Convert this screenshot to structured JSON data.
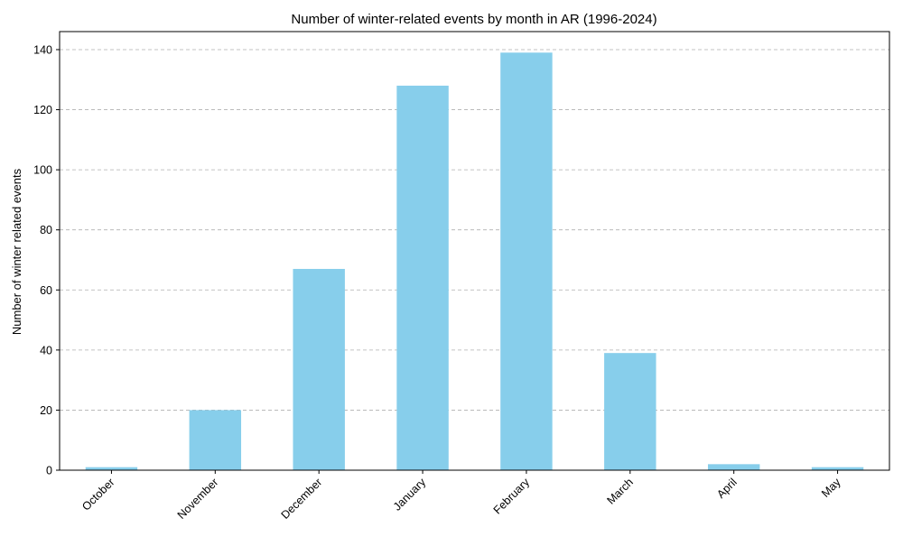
{
  "chart_data": {
    "type": "bar",
    "title": "Number of winter-related events by month in AR (1996-2024)",
    "xlabel": "",
    "ylabel": "Number of winter related events",
    "categories": [
      "October",
      "November",
      "December",
      "January",
      "February",
      "March",
      "April",
      "May"
    ],
    "values": [
      1,
      20,
      67,
      128,
      139,
      39,
      2,
      1
    ],
    "ylim": [
      0,
      146
    ],
    "yticks": [
      0,
      20,
      40,
      60,
      80,
      100,
      120,
      140
    ],
    "grid": "y-dashed",
    "legend": "none",
    "bar_color": "#87ceeb",
    "grid_color": "#b0b0b0",
    "x_tick_rotation_deg": 45
  }
}
